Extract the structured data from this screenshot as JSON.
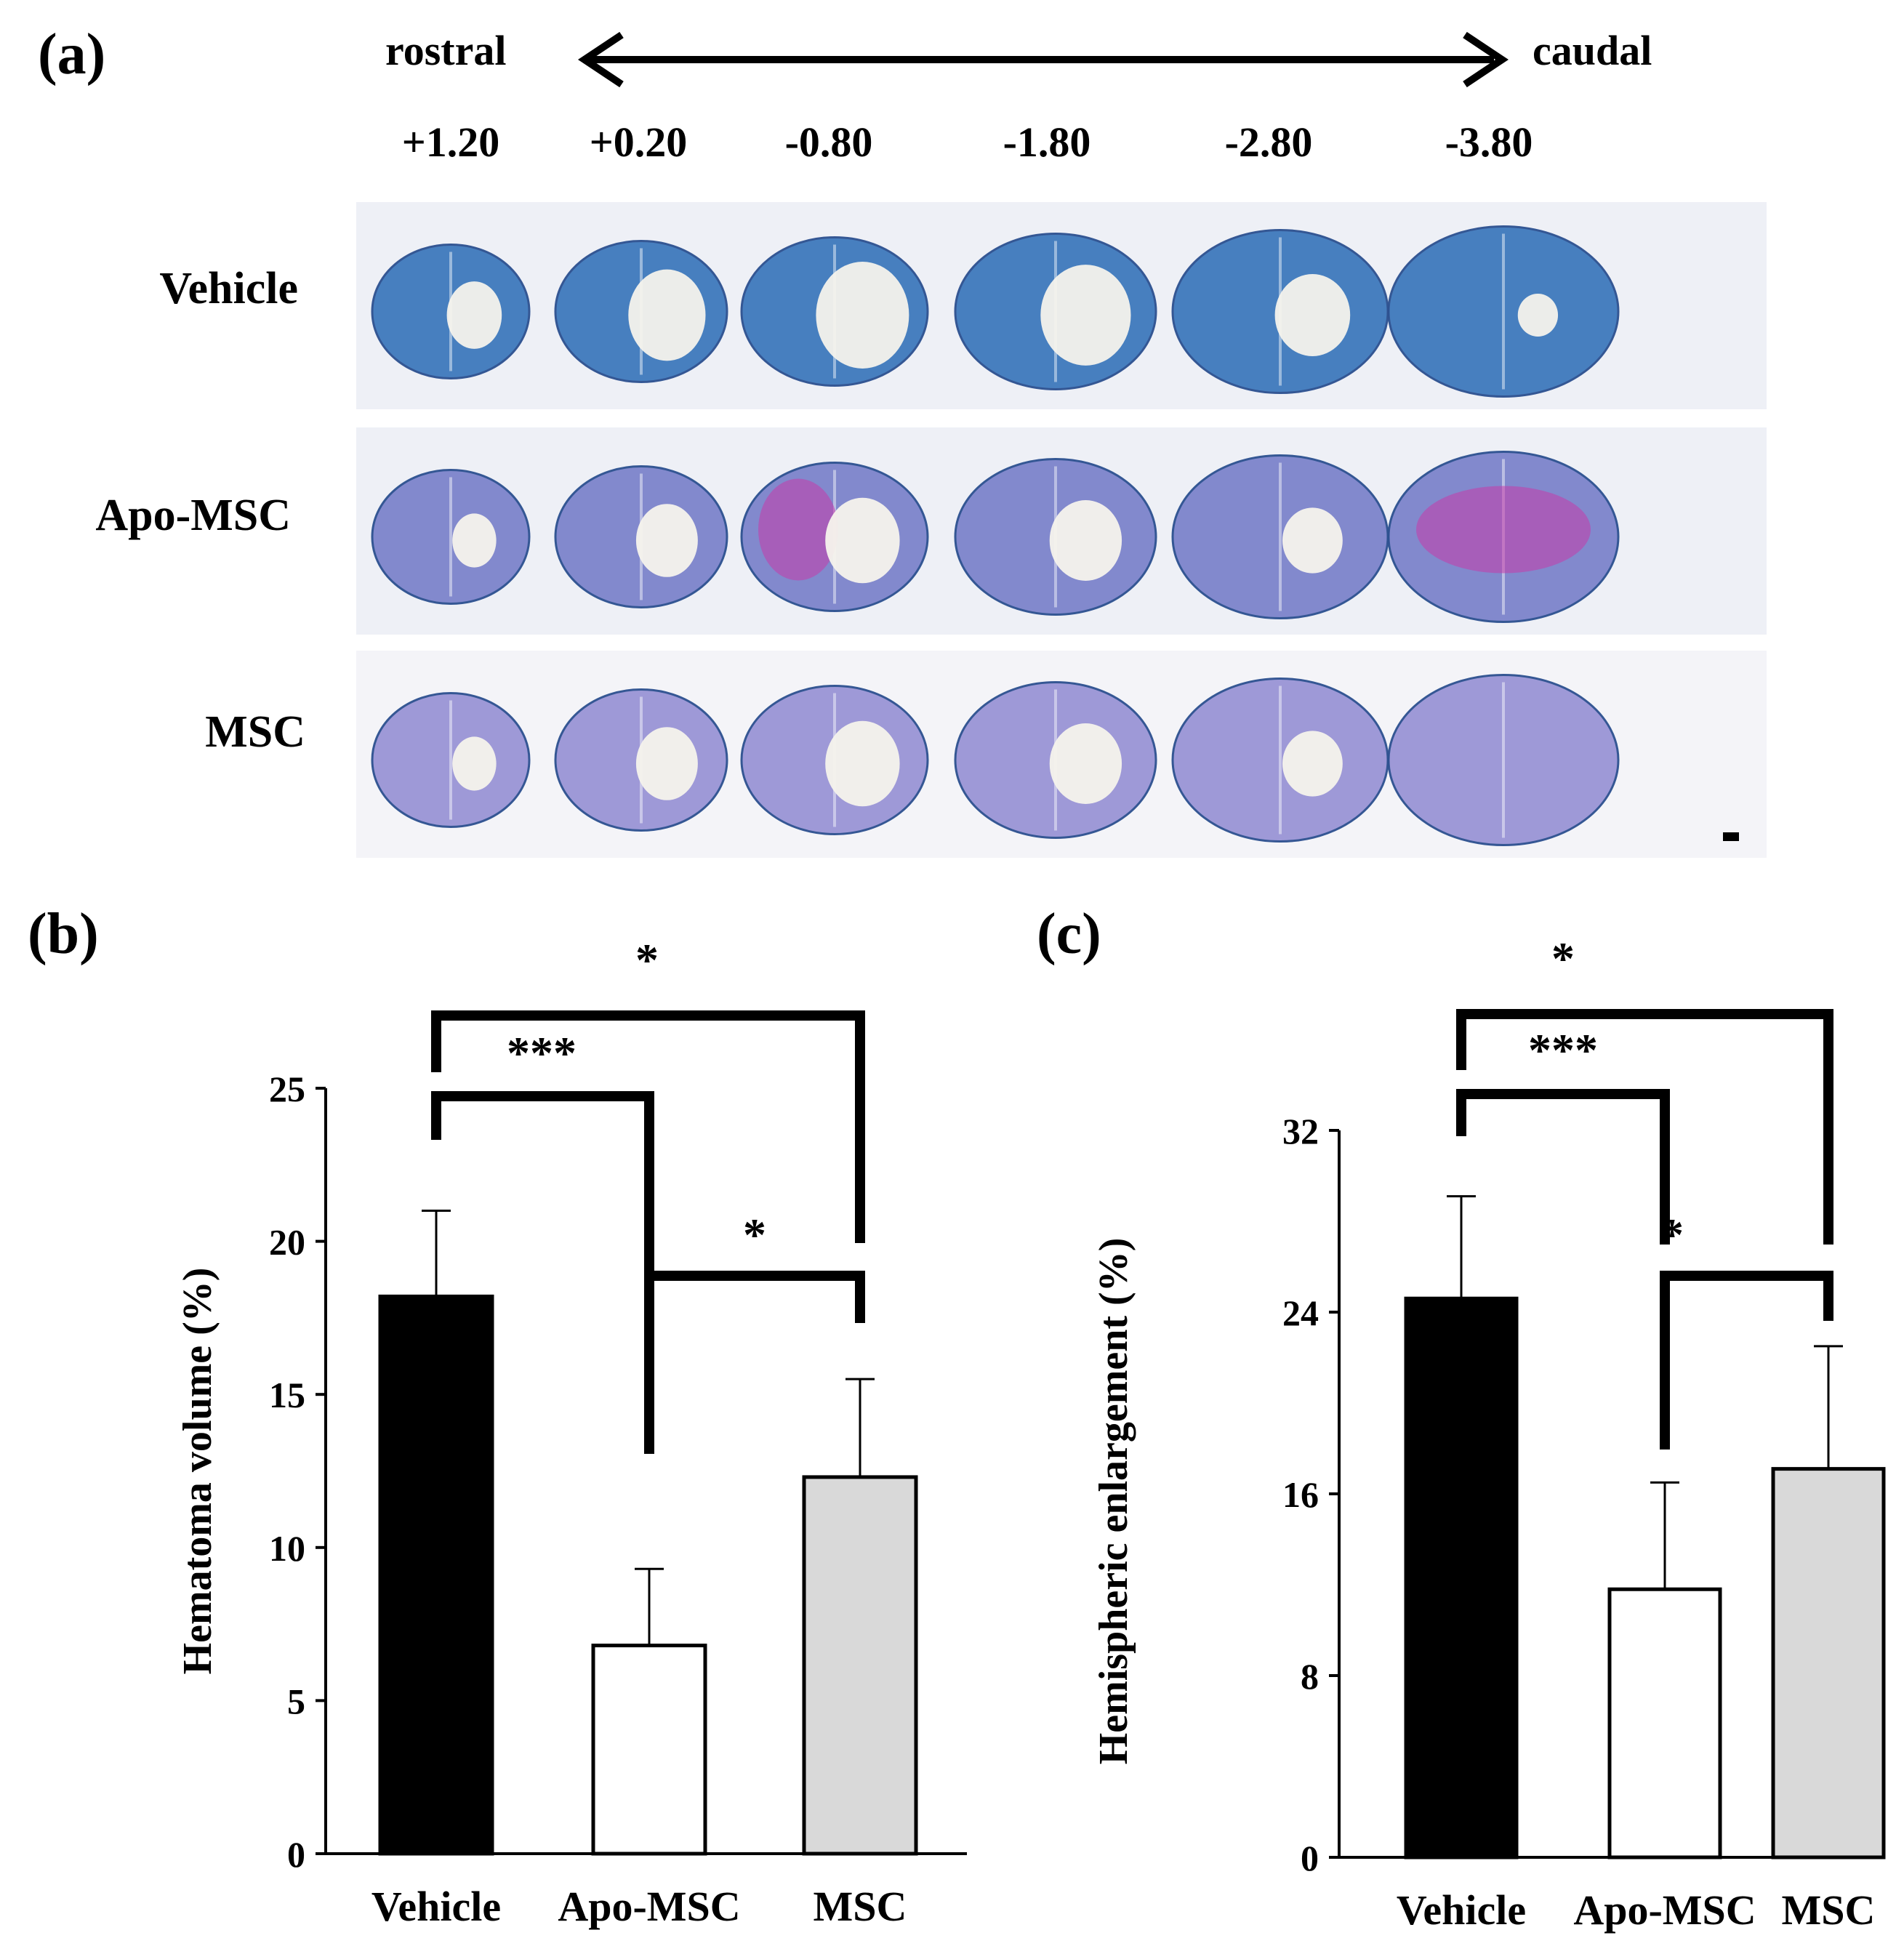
{
  "panels": {
    "a": "(a)",
    "b": "(b)",
    "c": "(c)"
  },
  "section_axis": {
    "rostral": "rostral",
    "caudal": "caudal",
    "coordinates": [
      "+1.20",
      "+0.20",
      "-0.80",
      "-1.80",
      "-2.80",
      "-3.80"
    ]
  },
  "stain_rows": [
    {
      "label": "Vehicle",
      "tissue": "#3f79bd",
      "bg": "#eef0f6",
      "accent": ""
    },
    {
      "label": "Apo-MSC",
      "tissue": "#7d84cb",
      "bg": "#eef0f6",
      "accent": "#c73aa9"
    },
    {
      "label": "MSC",
      "tissue": "#9a95d6",
      "bg": "#f4f4f8",
      "accent": ""
    }
  ],
  "chart_data": [
    {
      "type": "bar",
      "categories": [
        "Vehicle",
        "Apo-MSC",
        "MSC"
      ],
      "values": [
        18.2,
        6.8,
        12.3
      ],
      "errors": [
        2.8,
        2.5,
        3.2
      ],
      "colors": [
        "#000000",
        "#ffffff",
        "#d9d9d9"
      ],
      "ylabel": "Hematoma volume (%)",
      "ylim": [
        0,
        25
      ],
      "yticks": [
        "0",
        "5",
        "10",
        "15",
        "20",
        "25"
      ],
      "significance": [
        {
          "from": 0,
          "to": 1,
          "label": "***"
        },
        {
          "from": 0,
          "to": 2,
          "label": "*"
        },
        {
          "from": 1,
          "to": 2,
          "label": "*"
        }
      ]
    },
    {
      "type": "bar",
      "categories": [
        "Vehicle",
        "Apo-MSC",
        "MSC"
      ],
      "values": [
        24.6,
        11.8,
        17.1
      ],
      "errors": [
        4.5,
        4.7,
        5.4
      ],
      "colors": [
        "#000000",
        "#ffffff",
        "#d9d9d9"
      ],
      "ylabel": "Hemispheric enlargement  (%)",
      "ylim": [
        0,
        32
      ],
      "yticks": [
        "0",
        "8",
        "16",
        "24",
        "32"
      ],
      "significance": [
        {
          "from": 0,
          "to": 1,
          "label": "***"
        },
        {
          "from": 0,
          "to": 2,
          "label": "*"
        },
        {
          "from": 1,
          "to": 2,
          "label": "*"
        }
      ]
    }
  ]
}
